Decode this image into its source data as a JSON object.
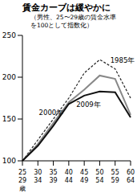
{
  "chart_data": {
    "type": "line",
    "title": "賃金カーブは緩やかに",
    "subtitle": "（男性、25〜29歳の賃金水準\nを100として指数化）",
    "x_label": "歳",
    "categories": [
      "25\n29",
      "30\n34",
      "35\n39",
      "40\n44",
      "45\n49",
      "50\n54",
      "55\n59",
      "60\n64"
    ],
    "series": [
      {
        "name": "1985年",
        "color": "#222222",
        "line_style": "dashed",
        "values": [
          100,
          125,
          150,
          175,
          205,
          221,
          210,
          175
        ]
      },
      {
        "name": "2000年",
        "color": "#888888",
        "line_style": "solid",
        "values": [
          100,
          120,
          145,
          170,
          185,
          202,
          198,
          155
        ]
      },
      {
        "name": "2009年",
        "color": "#111111",
        "line_style": "solid",
        "values": [
          100,
          118,
          142,
          168,
          178,
          183,
          182,
          152
        ]
      }
    ],
    "ylim": [
      100,
      250
    ],
    "yticks": [
      100,
      150,
      200,
      250
    ],
    "grid": false,
    "legend": false
  }
}
